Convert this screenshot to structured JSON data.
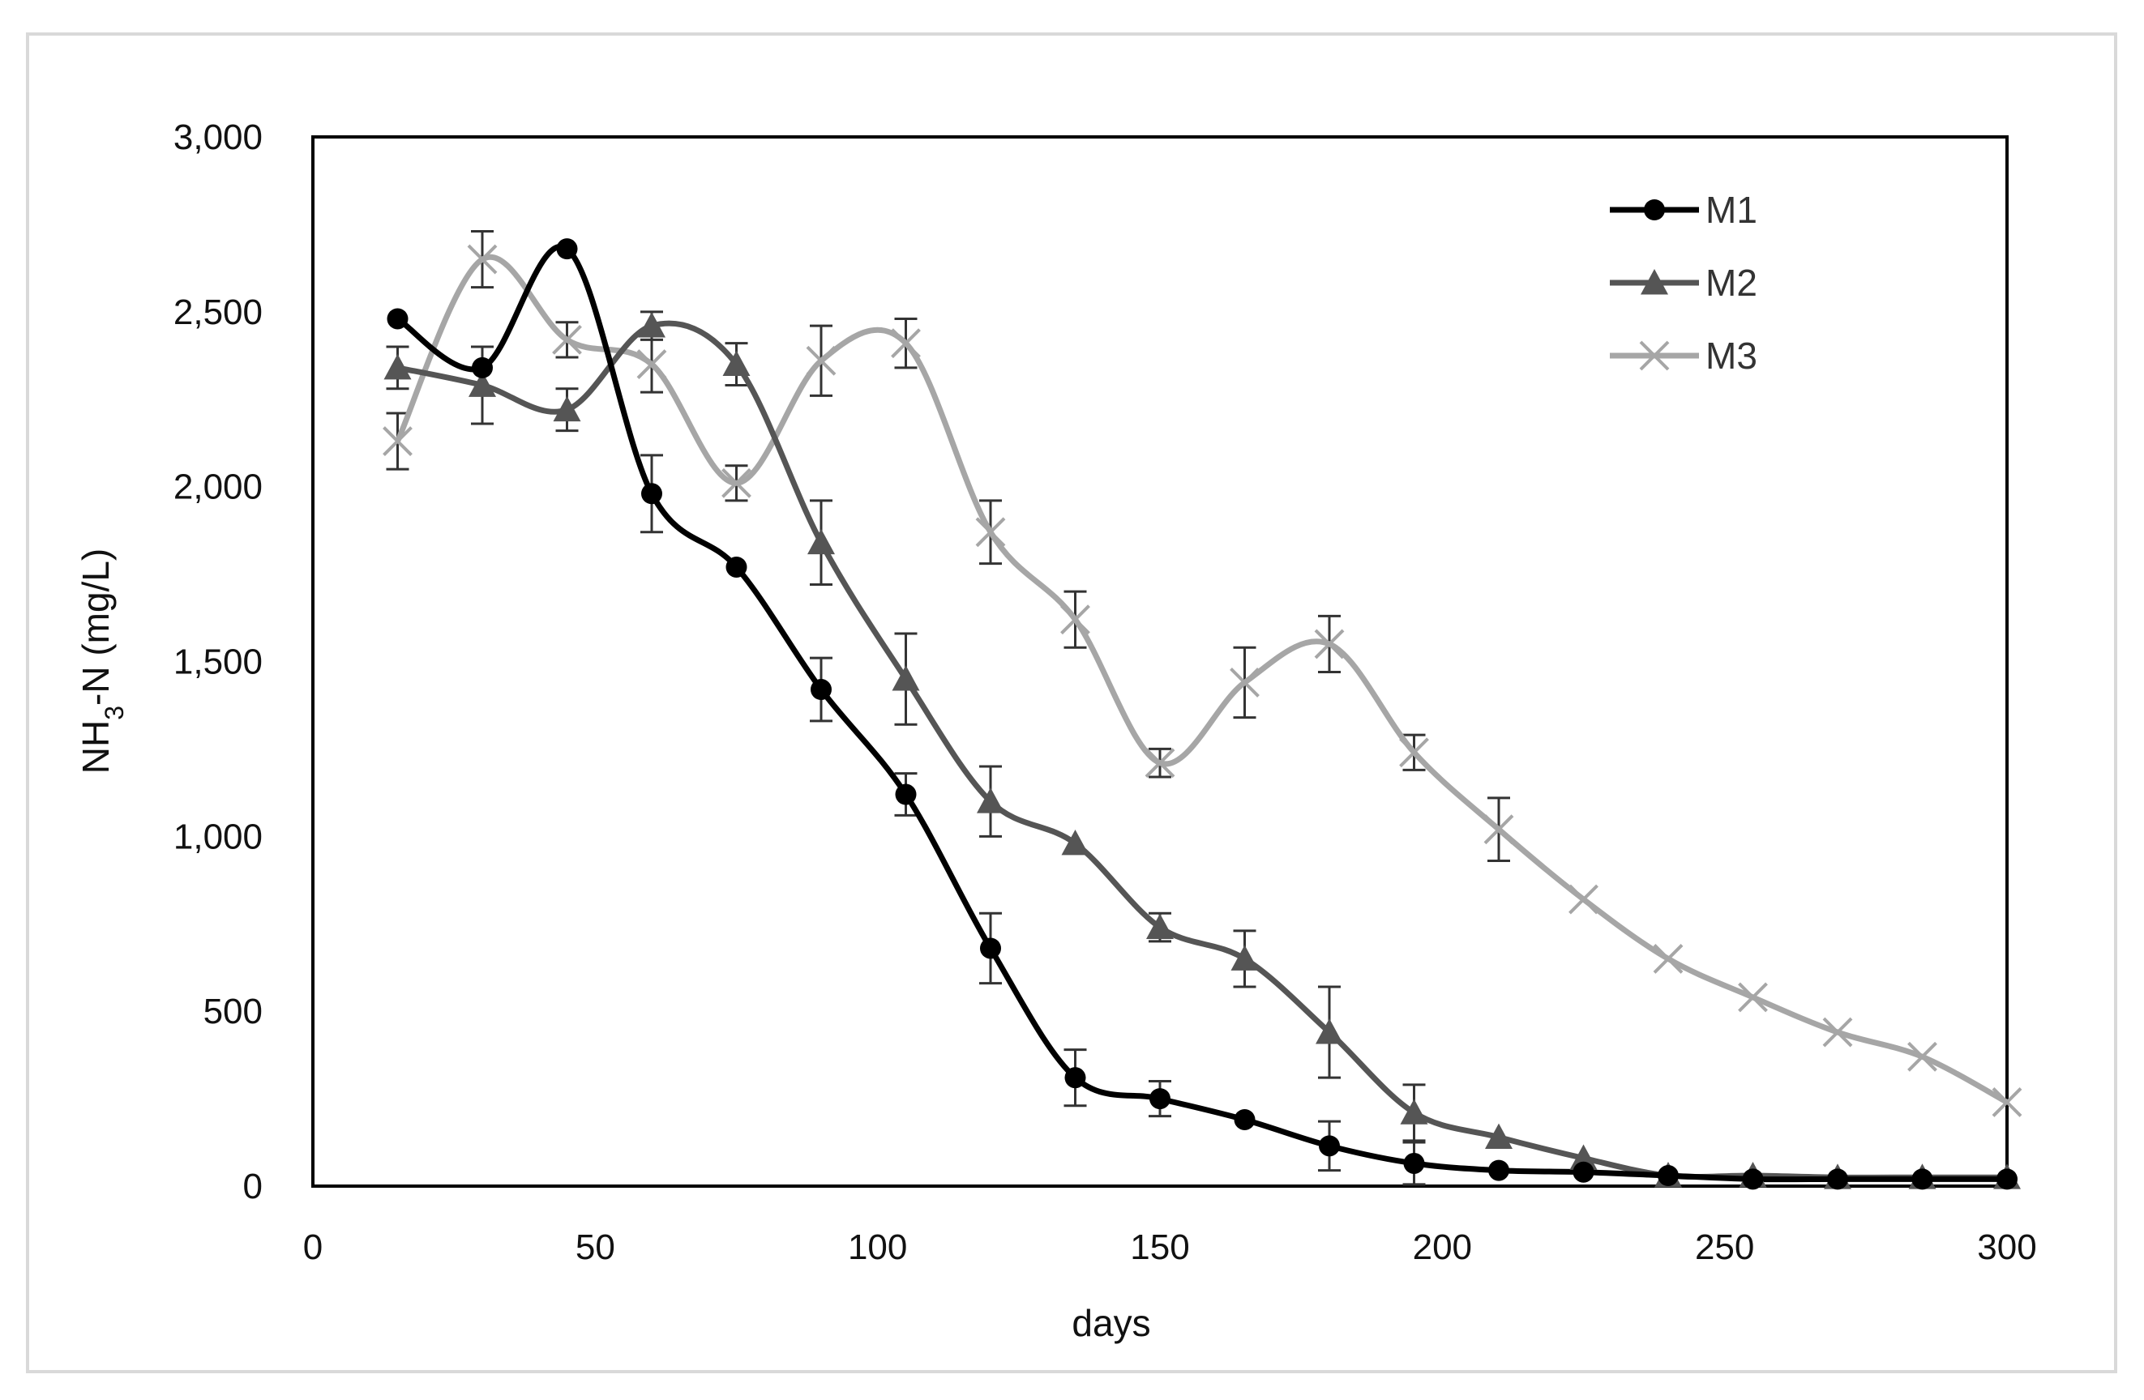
{
  "chart_data": {
    "type": "line",
    "title": "",
    "xlabel": "days",
    "ylabel_parts": [
      "NH",
      "3",
      "-N (mg/L)"
    ],
    "xlim": [
      0,
      300
    ],
    "ylim": [
      0,
      3000
    ],
    "xticks": [
      0,
      50,
      100,
      150,
      200,
      250,
      300
    ],
    "xtick_labels": [
      "0",
      "50",
      "100",
      "150",
      "200",
      "250",
      "300"
    ],
    "yticks": [
      0,
      500,
      1000,
      1500,
      2000,
      2500,
      3000
    ],
    "ytick_labels": [
      "0",
      "500",
      "1,000",
      "1,500",
      "2,000",
      "2,500",
      "3,000"
    ],
    "grid": false,
    "legend_position": "top-right",
    "series": [
      {
        "name": "M1",
        "marker": "circle",
        "color": "#000000",
        "x": [
          15,
          30,
          45,
          60,
          75,
          90,
          105,
          120,
          135,
          150,
          165,
          180,
          195,
          210,
          225,
          240,
          255,
          270,
          285,
          300
        ],
        "y": [
          2480,
          2340,
          2680,
          1980,
          1770,
          1420,
          1120,
          680,
          310,
          250,
          190,
          115,
          65,
          45,
          40,
          30,
          20,
          20,
          20,
          20
        ],
        "err": [
          0,
          0,
          0,
          110,
          0,
          90,
          60,
          100,
          80,
          50,
          0,
          70,
          60,
          0,
          0,
          0,
          0,
          0,
          0,
          0
        ]
      },
      {
        "name": "M2",
        "marker": "triangle",
        "color": "#555555",
        "x": [
          15,
          30,
          45,
          60,
          75,
          90,
          105,
          120,
          135,
          150,
          165,
          180,
          195,
          210,
          225,
          240,
          255,
          270,
          285,
          300
        ],
        "y": [
          2340,
          2290,
          2220,
          2460,
          2350,
          1840,
          1450,
          1100,
          980,
          740,
          650,
          440,
          210,
          140,
          80,
          30,
          30,
          25,
          25,
          25
        ],
        "err": [
          60,
          110,
          60,
          40,
          60,
          120,
          130,
          100,
          0,
          40,
          80,
          130,
          80,
          0,
          0,
          0,
          0,
          0,
          0,
          0
        ]
      },
      {
        "name": "M3",
        "marker": "x",
        "color": "#a6a6a6",
        "x": [
          15,
          30,
          45,
          60,
          75,
          90,
          105,
          120,
          135,
          150,
          165,
          180,
          195,
          210,
          225,
          240,
          255,
          270,
          285,
          300
        ],
        "y": [
          2130,
          2650,
          2420,
          2350,
          2010,
          2360,
          2410,
          1870,
          1620,
          1210,
          1440,
          1550,
          1240,
          1020,
          820,
          650,
          540,
          440,
          370,
          240
        ],
        "err": [
          80,
          80,
          50,
          80,
          50,
          100,
          70,
          90,
          80,
          40,
          100,
          80,
          50,
          90,
          0,
          0,
          0,
          0,
          0,
          0
        ]
      }
    ]
  }
}
